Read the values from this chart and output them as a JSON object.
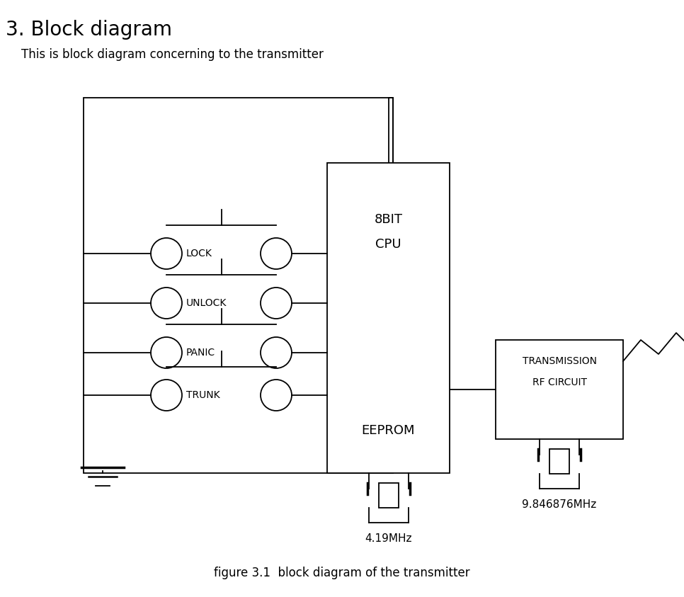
{
  "title": "3. Block diagram",
  "subtitle": "This is block diagram concerning to the transmitter",
  "figure_caption": "figure 3.1  block diagram of the transmitter",
  "buttons": [
    "LOCK",
    "UNLOCK",
    "PANIC",
    "TRUNK"
  ],
  "cpu_label1": "8BIT",
  "cpu_label2": "CPU",
  "cpu_label3": "EEPROM",
  "rf_label1": "TRANSMISSION",
  "rf_label2": "RF CIRCUIT",
  "freq1": "4.19MHz",
  "freq2": "9.846876MHz",
  "bg_color": "#ffffff",
  "line_color": "#000000",
  "font_color": "#000000"
}
